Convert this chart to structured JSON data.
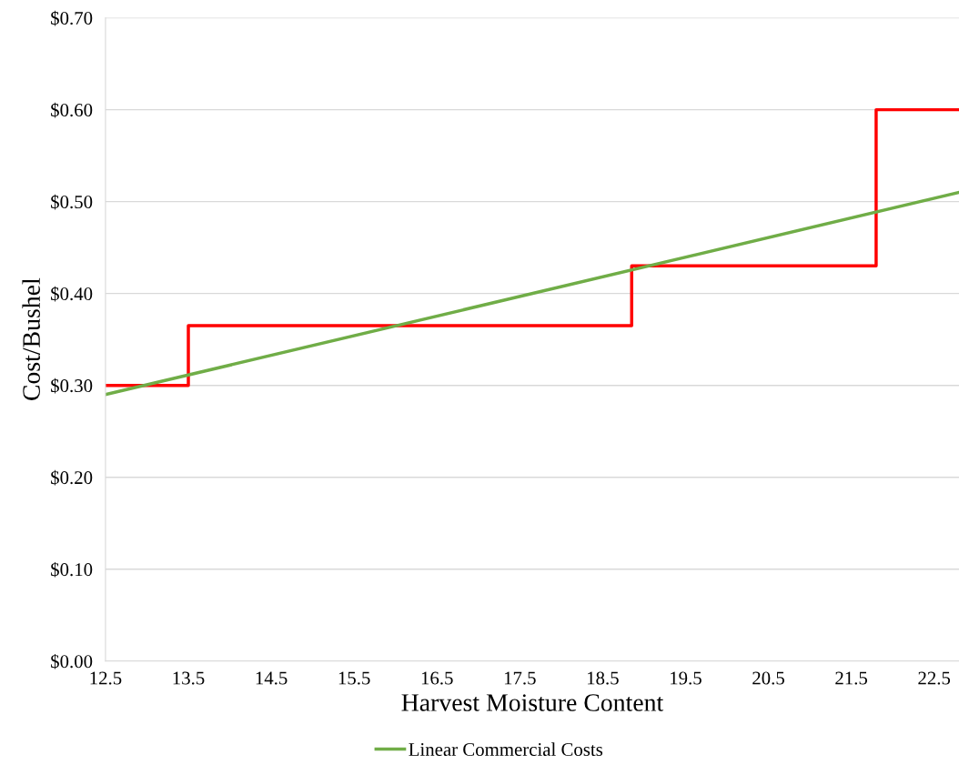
{
  "chart_data": {
    "type": "line",
    "xlabel": "Harvest Moisture Content",
    "ylabel": "Cost/Bushel",
    "xlim": [
      12.5,
      22.8
    ],
    "xticks": [
      12.5,
      13.5,
      14.5,
      15.5,
      16.5,
      17.5,
      18.5,
      19.5,
      20.5,
      21.5,
      22.5
    ],
    "ylim": [
      0,
      0.7
    ],
    "yticks": [
      {
        "value": 0,
        "label": "$0.00"
      },
      {
        "value": 0.1,
        "label": "$0.10"
      },
      {
        "value": 0.2,
        "label": "$0.20"
      },
      {
        "value": 0.3,
        "label": "$0.30"
      },
      {
        "value": 0.4,
        "label": "$0.40"
      },
      {
        "value": 0.5,
        "label": "$0.50"
      },
      {
        "value": 0.6,
        "label": "$0.60"
      },
      {
        "value": 0.7,
        "label": "$0.70"
      }
    ],
    "grid": "y",
    "legend": "bottom",
    "marker": "none",
    "line_style": "solid",
    "series": [
      {
        "type": "step",
        "color": "#ff0000",
        "x": [
          12.5,
          13.5,
          18.85,
          21.8,
          22.8
        ],
        "values": [
          0.3,
          0.365,
          0.43,
          0.6,
          0.6
        ]
      },
      {
        "name": "Linear Commercial Costs",
        "color": "#70ad47",
        "x": [
          12.5,
          22.8
        ],
        "values": [
          0.29,
          0.51
        ]
      }
    ]
  }
}
